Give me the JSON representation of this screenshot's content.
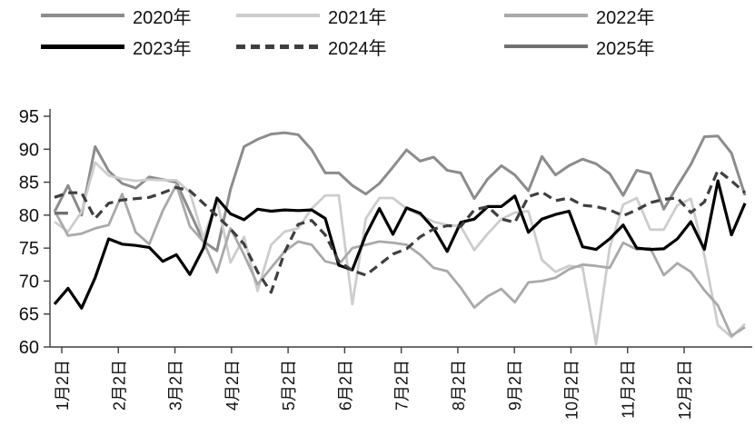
{
  "chart_data": {
    "type": "line",
    "title": "",
    "xlabel": "",
    "ylabel": "",
    "ylim": [
      60,
      95
    ],
    "y_ticks": [
      60,
      65,
      70,
      75,
      80,
      85,
      90,
      95
    ],
    "x_tick_labels": [
      "1月2日",
      "2月2日",
      "3月2日",
      "4月2日",
      "5月2日",
      "6月2日",
      "7月2日",
      "8月2日",
      "9月2日",
      "10月2日",
      "11月2日",
      "12月2日"
    ],
    "grid": false,
    "legend_position": "top",
    "x_resolution": "weekly",
    "axis_color": "#3f3f3f",
    "text_color": "#111111",
    "series": [
      {
        "name": "2020年",
        "color": "#8c8c8c",
        "dash": "solid",
        "width": 3,
        "values": [
          80.5,
          84.5,
          80.0,
          90.4,
          86.7,
          84.8,
          84.1,
          85.8,
          85.4,
          85.0,
          80.5,
          76.0,
          74.6,
          83.9,
          90.4,
          91.5,
          92.3,
          92.5,
          92.2,
          89.9,
          86.4,
          86.4,
          84.5,
          83.2,
          84.8,
          87.3,
          89.9,
          88.2,
          88.8,
          86.8,
          86.4,
          82.5,
          85.5,
          87.5,
          86.1,
          83.7,
          88.9,
          86.1,
          87.5,
          88.5,
          87.8,
          86.3,
          83.0,
          86.8,
          86.3,
          80.9,
          84.4,
          87.7,
          91.9,
          92.0,
          89.4,
          83.0
        ]
      },
      {
        "name": "2021年",
        "color": "#cdcdcd",
        "dash": "solid",
        "width": 2.8,
        "values": [
          79.0,
          77.5,
          80.5,
          88.0,
          86.0,
          85.5,
          85.2,
          85.4,
          85.3,
          85.3,
          83.5,
          76.5,
          82.3,
          72.8,
          76.7,
          68.5,
          75.5,
          77.5,
          78.0,
          81.0,
          83.0,
          83.0,
          66.5,
          79.5,
          82.6,
          82.6,
          81.0,
          80.0,
          79.0,
          78.5,
          78.3,
          74.7,
          77.2,
          79.4,
          80.4,
          80.6,
          73.2,
          71.4,
          72.3,
          72.1,
          60.4,
          75.0,
          81.6,
          82.6,
          77.8,
          77.8,
          81.5,
          82.5,
          73.9,
          63.3,
          61.5,
          63.5
        ]
      },
      {
        "name": "2022年",
        "color": "#a9a9a9",
        "dash": "solid",
        "width": 2.8,
        "values": [
          80.7,
          76.9,
          77.2,
          78.0,
          78.5,
          83.2,
          77.4,
          75.6,
          80.7,
          84.6,
          78.3,
          76.0,
          71.3,
          78.0,
          74.0,
          69.5,
          72.0,
          74.5,
          76.0,
          75.5,
          73.0,
          72.5,
          75.0,
          75.5,
          76.0,
          75.8,
          75.5,
          74.0,
          72.0,
          71.5,
          69.0,
          66.0,
          67.7,
          68.8,
          66.8,
          69.8,
          70.0,
          70.5,
          71.8,
          72.5,
          72.3,
          72.0,
          75.8,
          74.8,
          75.0,
          70.9,
          72.7,
          71.4,
          68.6,
          66.3,
          61.7,
          63.0
        ]
      },
      {
        "name": "2023年",
        "color": "#000000",
        "dash": "solid",
        "width": 3.2,
        "values": [
          66.5,
          68.9,
          65.9,
          70.5,
          76.4,
          75.6,
          75.4,
          75.1,
          73.0,
          74.0,
          71.0,
          75.0,
          82.6,
          80.2,
          79.3,
          80.9,
          80.6,
          80.8,
          80.7,
          80.8,
          79.5,
          72.4,
          71.7,
          77.0,
          81.0,
          77.1,
          81.1,
          80.3,
          78.0,
          74.5,
          78.9,
          79.4,
          81.3,
          81.3,
          82.9,
          77.4,
          79.4,
          80.1,
          80.6,
          75.2,
          74.8,
          76.4,
          78.5,
          75.0,
          74.8,
          74.9,
          76.4,
          79.0,
          74.8,
          85.2,
          77.0,
          81.8
        ]
      },
      {
        "name": "2024年",
        "color": "#3f3f3f",
        "dash": "dashed",
        "width": 3.2,
        "values": [
          82.7,
          83.4,
          83.4,
          79.5,
          81.8,
          82.3,
          82.5,
          82.7,
          83.4,
          84.2,
          83.7,
          81.8,
          79.9,
          77.9,
          75.6,
          71.4,
          68.3,
          74.4,
          78.6,
          79.2,
          77.0,
          73.0,
          71.6,
          70.9,
          72.5,
          74.1,
          74.9,
          76.7,
          77.9,
          78.4,
          78.3,
          80.8,
          81.3,
          79.4,
          78.9,
          82.8,
          83.5,
          82.2,
          82.6,
          81.5,
          81.3,
          80.8,
          79.9,
          80.8,
          81.9,
          82.4,
          82.6,
          80.4,
          82.0,
          86.8,
          85.2,
          83.4
        ]
      },
      {
        "name": "2025年",
        "color": "#707070",
        "dash": "solid",
        "width": 3.4,
        "values": [
          80.3,
          80.3
        ]
      }
    ]
  },
  "legend": {
    "rows": [
      [
        0,
        1,
        2
      ],
      [
        3,
        4,
        5
      ]
    ]
  }
}
